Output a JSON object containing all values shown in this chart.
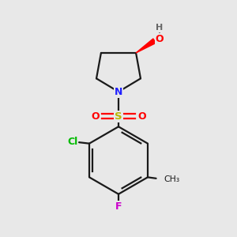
{
  "background_color": "#e8e8e8",
  "bond_color": "#1a1a1a",
  "N_color": "#2020ff",
  "O_color": "#ff0000",
  "S_color": "#b8b800",
  "Cl_color": "#00bb00",
  "F_color": "#cc00cc",
  "H_color": "#666666",
  "figsize": [
    3.0,
    3.0
  ],
  "dpi": 100,
  "xlim": [
    0,
    10
  ],
  "ylim": [
    0,
    10
  ]
}
